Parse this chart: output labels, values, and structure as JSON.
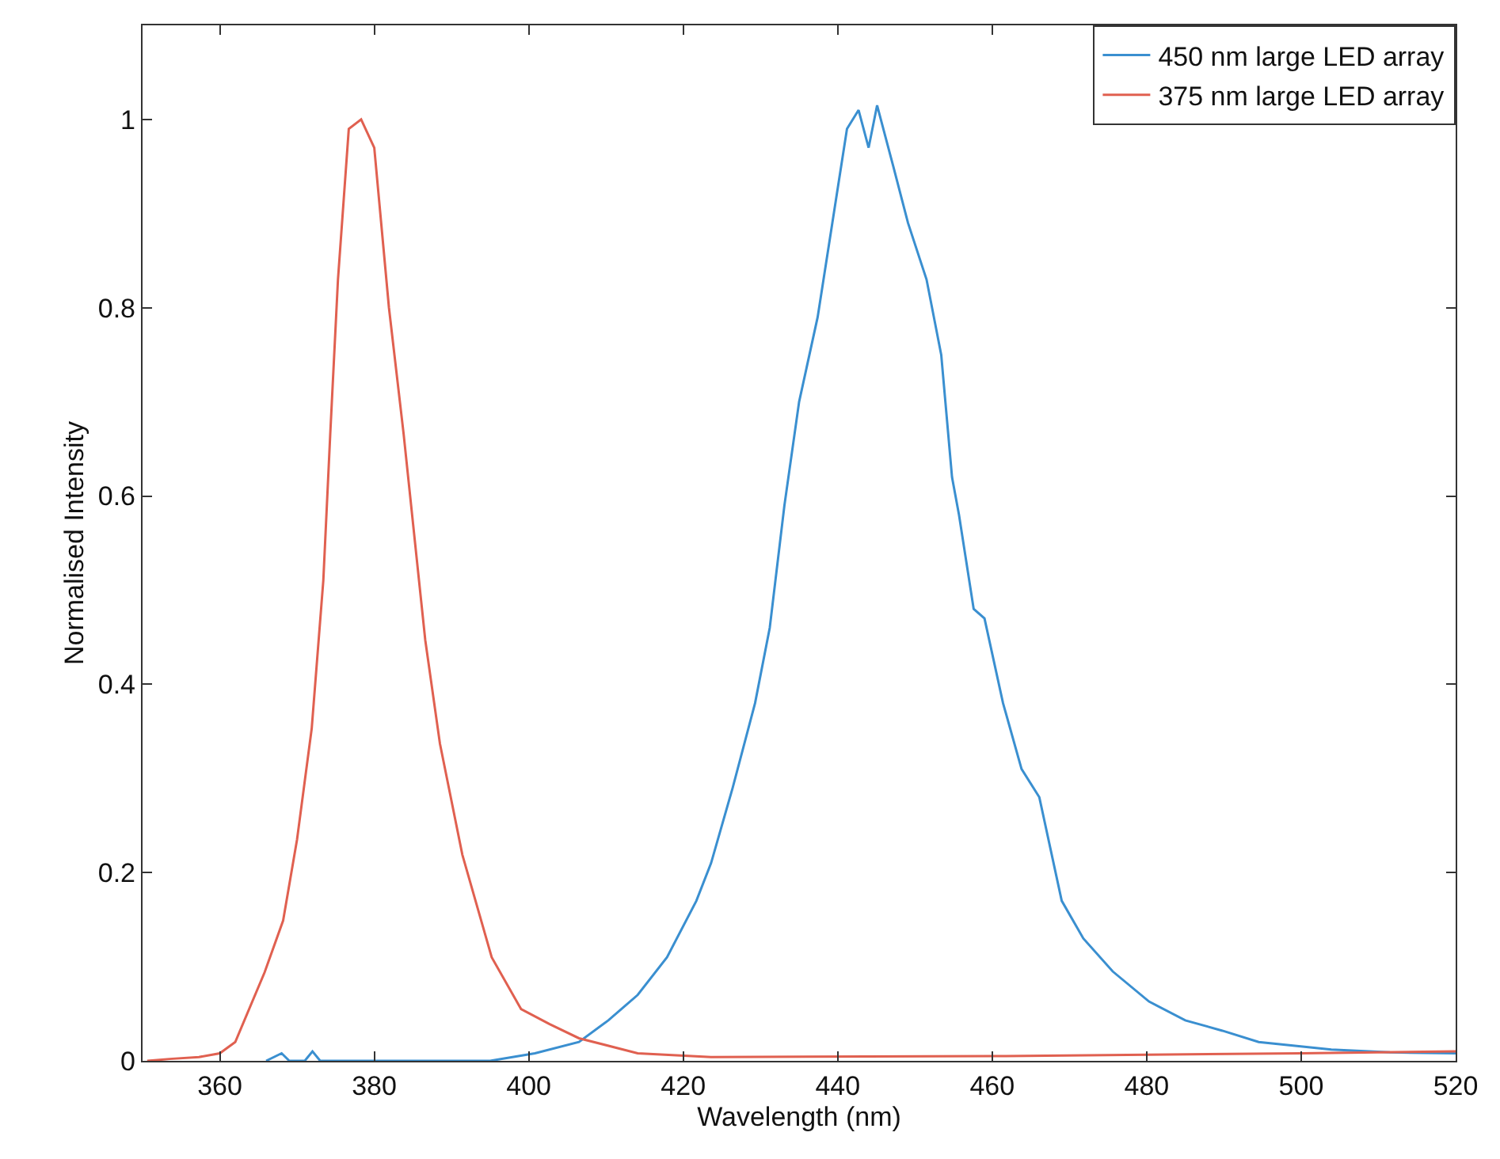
{
  "chart_data": {
    "type": "line",
    "xlabel": "Wavelength (nm)",
    "ylabel": "Normalised Intensity",
    "xlim": [
      350,
      520
    ],
    "ylim": [
      0,
      1.1
    ],
    "xticks": [
      360,
      380,
      400,
      420,
      440,
      460,
      480,
      500,
      520
    ],
    "yticks": [
      0,
      0.2,
      0.4,
      0.6,
      0.8,
      1
    ],
    "grid": false,
    "legend": "top right",
    "marker": "none",
    "line_style": "solid",
    "series": [
      {
        "name": "450 nm large LED array",
        "color": "#3a8fd0",
        "x": [
          366,
          368,
          369,
          371,
          372,
          373,
          395,
          400.8,
          406.5,
          410.3,
          414.1,
          417.9,
          421.7,
          423.6,
          426.4,
          429.3,
          431.2,
          433.1,
          435,
          437.4,
          439.3,
          441.2,
          442.7,
          444,
          445.1,
          447.2,
          449.1,
          451.5,
          453.4,
          454.8,
          455.7,
          457.6,
          459,
          461.4,
          463.8,
          466.1,
          469,
          471.8,
          475.6,
          480.3,
          485,
          489.8,
          494.5,
          499.2,
          503.9,
          511.5,
          520
        ],
        "values": [
          0,
          0.008,
          0,
          0,
          0.01,
          0,
          0,
          0.008,
          0.02,
          0.043,
          0.07,
          0.11,
          0.17,
          0.21,
          0.29,
          0.38,
          0.46,
          0.59,
          0.7,
          0.79,
          0.89,
          0.99,
          1.01,
          0.97,
          1.015,
          0.95,
          0.89,
          0.83,
          0.75,
          0.62,
          0.58,
          0.48,
          0.47,
          0.38,
          0.31,
          0.28,
          0.17,
          0.13,
          0.095,
          0.063,
          0.043,
          0.032,
          0.02,
          0.016,
          0.012,
          0.009,
          0.008
        ]
      },
      {
        "name": "375 nm large LED array",
        "color": "#e06050",
        "x": [
          350.6,
          353.5,
          357.3,
          360,
          362,
          365.8,
          368.2,
          370,
          371.9,
          373.4,
          374.3,
          375.3,
          376.7,
          378.3,
          380,
          381.9,
          383.8,
          386.6,
          388.5,
          391.4,
          395.2,
          399,
          402.7,
          406.5,
          414.1,
          423.6,
          460,
          500,
          520
        ],
        "values": [
          0,
          0.002,
          0.004,
          0.008,
          0.02,
          0.094,
          0.149,
          0.235,
          0.353,
          0.51,
          0.666,
          0.83,
          0.99,
          1,
          0.97,
          0.8,
          0.666,
          0.447,
          0.337,
          0.219,
          0.11,
          0.055,
          0.039,
          0.024,
          0.008,
          0.004,
          0.005,
          0.008,
          0.01
        ]
      }
    ]
  }
}
